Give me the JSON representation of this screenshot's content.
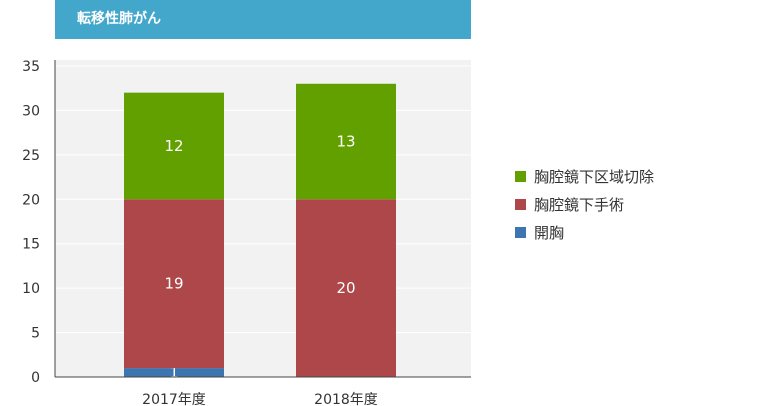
{
  "title": "転移性肺がん",
  "chart_data": {
    "type": "bar",
    "stacked": true,
    "categories": [
      "2017年度",
      "2018年度"
    ],
    "series": [
      {
        "name": "開胸",
        "color": "#3c75b0",
        "values": [
          1,
          0
        ],
        "labels": [
          "1",
          ""
        ]
      },
      {
        "name": "胸腔鏡下手術",
        "color": "#ad474a",
        "values": [
          19,
          20
        ],
        "labels": [
          "19",
          "20"
        ]
      },
      {
        "name": "胸腔鏡下区域切除",
        "color": "#62a000",
        "values": [
          12,
          13
        ],
        "labels": [
          "12",
          "13"
        ]
      }
    ],
    "y_ticks": [
      0,
      5,
      10,
      15,
      20,
      25,
      30,
      35
    ],
    "ylim": [
      0,
      35
    ],
    "grid": true,
    "legend_position": "right"
  }
}
